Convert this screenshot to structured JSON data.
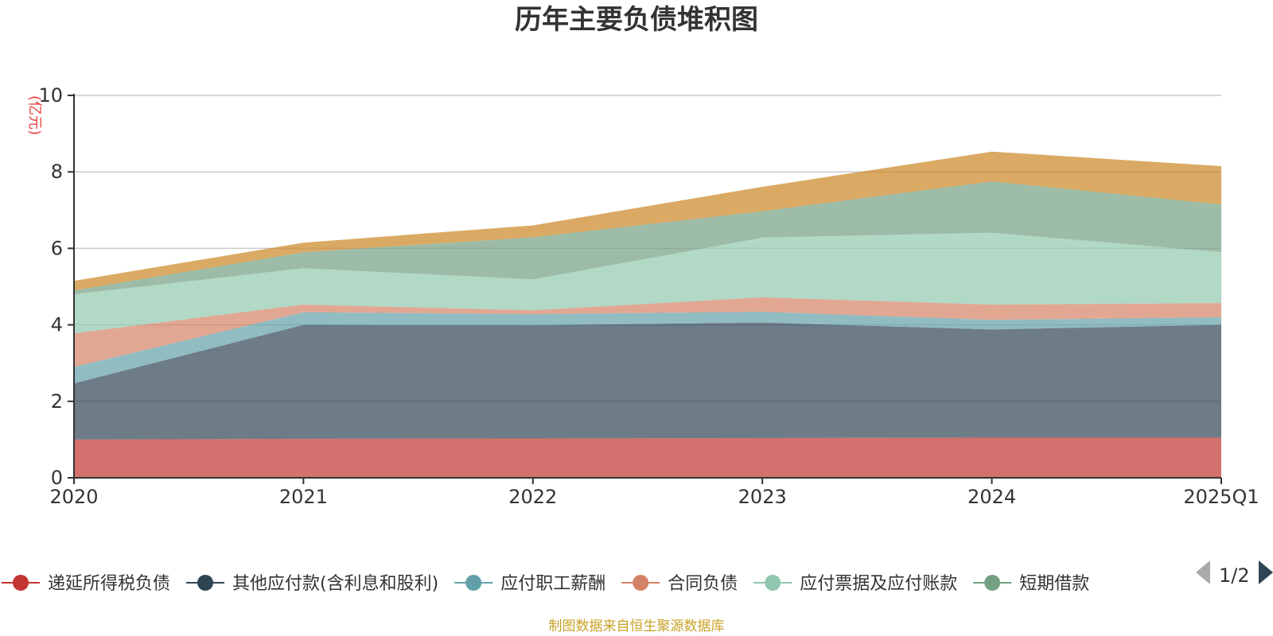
{
  "colors": {
    "axis": "#333333",
    "grid": "#cccccc",
    "unit": "#e8413d",
    "source": "#c9a227",
    "pager_prev": "#aaaaaa",
    "pager_next": "#2f4554"
  },
  "legend": {
    "page_label": "1/2",
    "prev_icon": "triangle-left",
    "next_icon": "triangle-right"
  },
  "footer": {
    "source": "制图数据来自恒生聚源数据库"
  },
  "chart_data": {
    "type": "area",
    "stacked": true,
    "title": "历年主要负债堆积图",
    "ylabel": "(亿元)",
    "xlabel": "",
    "ylim": [
      0,
      10
    ],
    "yticks": [
      0,
      2,
      4,
      6,
      8,
      10
    ],
    "grid": true,
    "legend_position": "bottom",
    "categories": [
      "2020",
      "2021",
      "2022",
      "2023",
      "2024",
      "2025Q1"
    ],
    "series": [
      {
        "name": "递延所得税负债",
        "color": "#c23531",
        "values": [
          1.0,
          1.02,
          1.03,
          1.04,
          1.05,
          1.05
        ]
      },
      {
        "name": "其他应付款(含利息和股利)",
        "color": "#2f4554",
        "values": [
          1.47,
          2.98,
          2.96,
          3.02,
          2.83,
          2.95
        ]
      },
      {
        "name": "应付职工薪酬",
        "color": "#61a0a8",
        "values": [
          0.43,
          0.33,
          0.29,
          0.28,
          0.25,
          0.2
        ]
      },
      {
        "name": "合同负债",
        "color": "#d48265",
        "values": [
          0.88,
          0.2,
          0.1,
          0.38,
          0.4,
          0.37
        ]
      },
      {
        "name": "应付票据及应付账款",
        "color": "#91c7ae",
        "values": [
          1.02,
          0.95,
          0.81,
          1.56,
          1.88,
          1.33
        ]
      },
      {
        "name": "短期借款",
        "color": "#749f83",
        "values": [
          0.1,
          0.42,
          1.1,
          0.69,
          1.34,
          1.25
        ]
      },
      {
        "name": "",
        "color": "#ca8622",
        "values": [
          0.25,
          0.25,
          0.31,
          0.64,
          0.78,
          1.0
        ]
      }
    ]
  }
}
